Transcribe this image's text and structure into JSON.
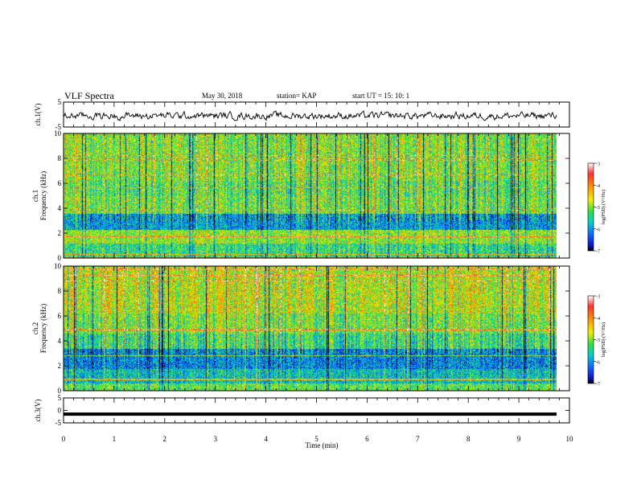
{
  "header": {
    "title": "VLF Spectra",
    "date": "May 30, 2018",
    "station": "station= KAP",
    "start": "start  UT  =   15: 10: 1"
  },
  "chart_data": [
    {
      "type": "line",
      "panel": "ch1-waveform",
      "ylabel": "ch.1(V)",
      "ylim": [
        -5,
        5
      ],
      "yticks": [
        "5",
        "-5"
      ],
      "description_values": "noisy waveform oscillating roughly between -2.5 and 1.5 V over 0–9.8 min"
    },
    {
      "type": "heatmap",
      "panel": "ch1-spectrogram",
      "ylabel_top": "ch.1",
      "ylabel": "Frequency  (kHz)",
      "ylim": [
        0,
        10
      ],
      "yticks": [
        "0",
        "2",
        "4",
        "6",
        "8",
        "10"
      ],
      "colorbar": {
        "label": "log(PSD) (V²/Hz)",
        "range": [
          -7,
          -3
        ],
        "ticks": [
          "-3",
          "-4",
          "-5",
          "-6",
          "-7"
        ]
      }
    },
    {
      "type": "heatmap",
      "panel": "ch2-spectrogram",
      "ylabel_top": "ch.2",
      "ylabel": "Frequency  (kHz)",
      "ylim": [
        0,
        10
      ],
      "yticks": [
        "0",
        "2",
        "4",
        "6",
        "8",
        "10"
      ],
      "colorbar": {
        "label": "log(PSD) (V²/Hz)",
        "range": [
          -7,
          -3
        ],
        "ticks": [
          "-3",
          "-4",
          "-5",
          "-6",
          "-7"
        ]
      }
    },
    {
      "type": "line",
      "panel": "ch3-waveform",
      "ylabel": "ch.3(V)",
      "ylim": [
        -5,
        5
      ],
      "yticks": [
        "5",
        "0",
        "-5"
      ],
      "constant_value": -1.5
    }
  ],
  "xaxis": {
    "label": "Time  (min)",
    "range": [
      0,
      10
    ],
    "ticks": [
      "0",
      "1",
      "2",
      "3",
      "4",
      "5",
      "6",
      "7",
      "8",
      "9",
      "10"
    ]
  }
}
